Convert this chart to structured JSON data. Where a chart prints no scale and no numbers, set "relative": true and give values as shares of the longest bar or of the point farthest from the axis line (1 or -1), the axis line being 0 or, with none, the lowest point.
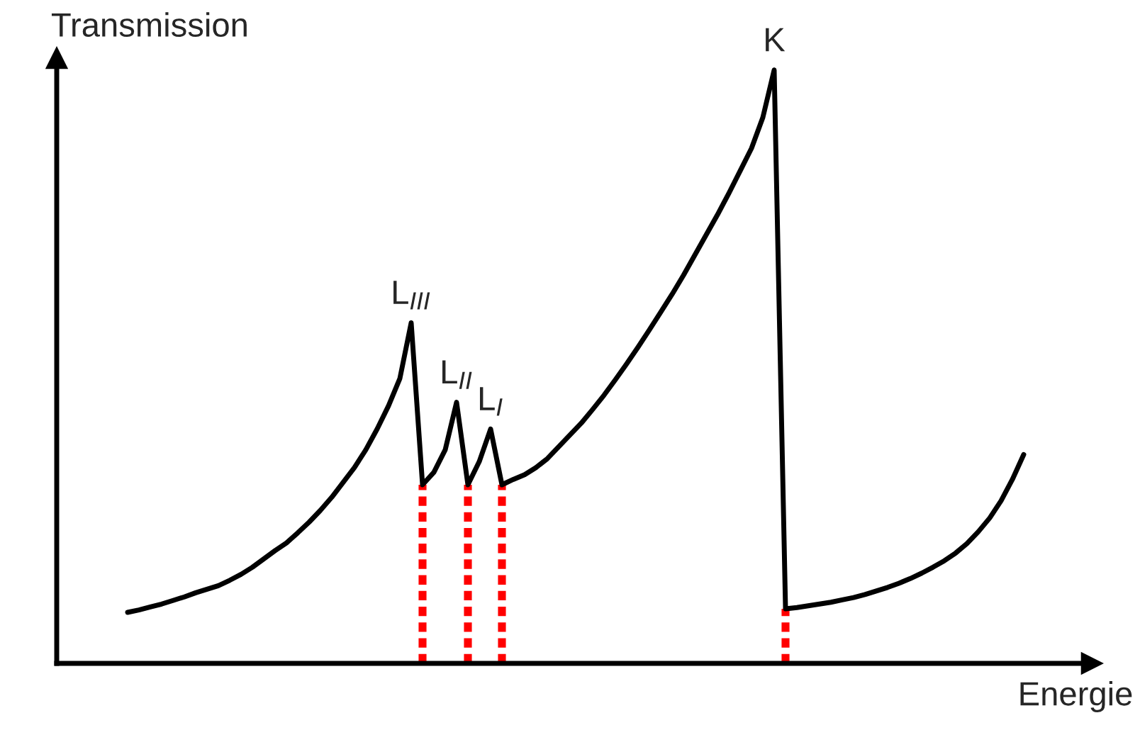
{
  "chart_data": {
    "type": "line",
    "relative": true,
    "xlabel": "Energie",
    "ylabel": "Transmission",
    "categories": [
      null,
      null,
      null,
      null,
      null,
      null,
      null,
      null,
      null,
      null,
      null,
      null,
      null,
      null,
      null,
      null,
      null,
      null,
      null,
      null,
      null,
      null,
      null,
      null,
      null,
      null,
      null,
      null,
      null,
      null,
      null,
      null,
      null,
      null,
      null,
      null,
      null,
      null,
      null,
      null,
      null,
      null,
      null,
      null,
      null,
      null,
      null,
      null,
      null,
      null,
      null,
      null,
      null,
      null,
      null,
      null,
      null,
      null,
      null,
      null,
      null,
      null,
      null,
      null,
      null,
      null,
      null,
      null,
      null,
      null,
      null,
      null,
      null,
      null,
      null,
      null,
      null,
      null,
      null,
      null
    ],
    "series": [
      {
        "color": "#000000",
        "line_style": "solid",
        "values": [
          0.086,
          0.09,
          0.095,
          0.1,
          0.106,
          0.112,
          0.119,
          0.125,
          0.131,
          0.14,
          0.15,
          0.162,
          0.176,
          0.19,
          0.203,
          0.22,
          0.238,
          0.258,
          0.28,
          0.305,
          0.33,
          0.36,
          0.395,
          0.434,
          0.48,
          0.574,
          0.301,
          0.322,
          0.36,
          0.44,
          0.301,
          0.34,
          0.395,
          0.301,
          0.31,
          0.318,
          0.33,
          0.345,
          0.365,
          0.385,
          0.405,
          0.428,
          0.452,
          0.478,
          0.505,
          0.533,
          0.562,
          0.592,
          0.622,
          0.654,
          0.688,
          0.722,
          0.756,
          0.792,
          0.83,
          0.868,
          0.92,
          1.0,
          0.092,
          0.094,
          0.097,
          0.1,
          0.103,
          0.107,
          0.111,
          0.116,
          0.122,
          0.128,
          0.135,
          0.143,
          0.152,
          0.162,
          0.173,
          0.186,
          0.202,
          0.222,
          0.245,
          0.274,
          0.31,
          0.352
        ]
      }
    ],
    "annotations": [
      "L$_{III}$",
      "L$_{II}$",
      "L$_{I}$",
      "K"
    ]
  }
}
